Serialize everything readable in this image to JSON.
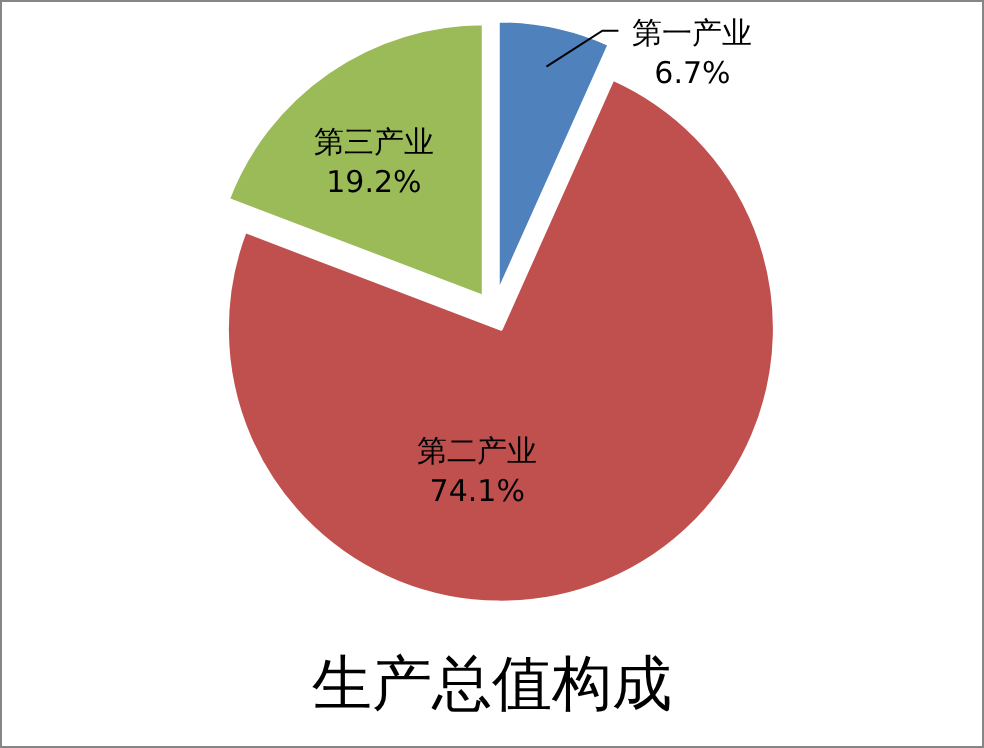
{
  "chart_data": {
    "type": "pie",
    "title": "生产总值构成",
    "categories": [
      "第一产业",
      "第二产业",
      "第三产业"
    ],
    "values": [
      6.7,
      74.1,
      19.2
    ],
    "colors": [
      "#4f81bd",
      "#c0504d",
      "#9bbb59"
    ],
    "value_labels": [
      "6.7%",
      "74.1%",
      "19.2%"
    ]
  }
}
